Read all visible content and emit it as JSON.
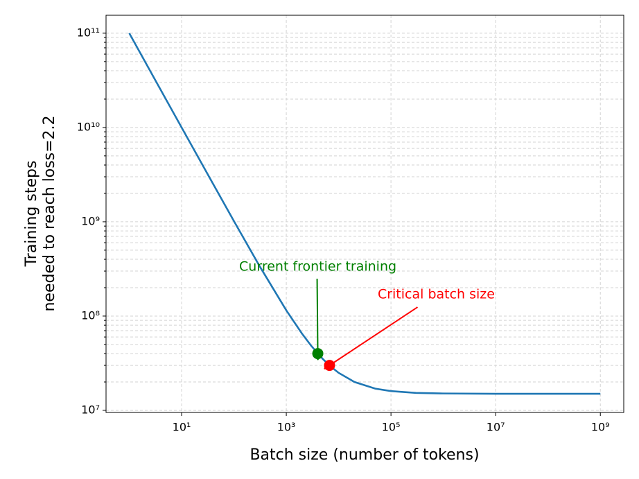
{
  "chart_data": {
    "type": "line",
    "xlabel": "Batch size (number of tokens)",
    "ylabel": [
      "Training steps",
      "needed to reach loss=2.2"
    ],
    "log_x": true,
    "log_y": true,
    "grid": true,
    "color": "#1f77b4",
    "x": [
      1,
      3,
      10,
      30,
      100,
      300,
      1000,
      2000,
      3000,
      5000,
      7000,
      10000,
      20000,
      50000,
      100000,
      300000,
      1000000,
      10000000,
      100000000,
      1000000000
    ],
    "values": [
      100000000000,
      33300000000,
      10000000000,
      3350000000,
      1015000000,
      348000000,
      115000000,
      65000000,
      48300000,
      35000000,
      29300000,
      25000000,
      20000000,
      17000000,
      16000000,
      15300000,
      15100000,
      15000000,
      15000000,
      15000000
    ],
    "xlim": [
      0.36,
      2800000000
    ],
    "ylim": [
      9500000,
      155000000000
    ],
    "xticks": [
      {
        "value": 10,
        "label": "10¹"
      },
      {
        "value": 1000,
        "label": "10³"
      },
      {
        "value": 100000,
        "label": "10⁵"
      },
      {
        "value": 10000000,
        "label": "10⁷"
      },
      {
        "value": 1000000000,
        "label": "10⁹"
      }
    ],
    "yticks": [
      {
        "value": 10000000,
        "label": "10⁷"
      },
      {
        "value": 100000000,
        "label": "10⁸"
      },
      {
        "value": 1000000000,
        "label": "10⁹"
      },
      {
        "value": 10000000000,
        "label": "10¹⁰"
      },
      {
        "value": 100000000000,
        "label": "10¹¹"
      }
    ],
    "yminorticks": [
      20000000,
      30000000,
      40000000,
      50000000,
      60000000,
      70000000,
      80000000,
      90000000,
      200000000,
      300000000,
      400000000,
      500000000,
      600000000,
      700000000,
      800000000,
      900000000,
      2000000000,
      3000000000,
      4000000000,
      5000000000,
      6000000000,
      7000000000,
      8000000000,
      9000000000,
      20000000000,
      30000000000,
      40000000000,
      50000000000,
      60000000000,
      70000000000,
      80000000000,
      90000000000
    ],
    "annotations": [
      {
        "text": "Current frontier training",
        "color": "#008000",
        "x": 4000,
        "y": 40000000
      },
      {
        "text": "Critical batch size",
        "color": "#ff0000",
        "x": 6700,
        "y": 30000000
      }
    ]
  }
}
